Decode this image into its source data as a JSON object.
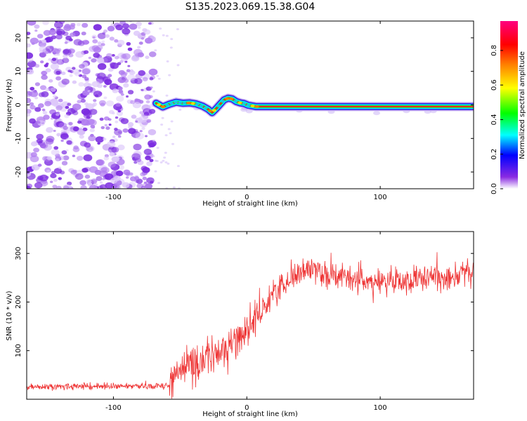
{
  "title": "S135.2023.069.15.38.G04",
  "chart_data": [
    {
      "type": "heatmap",
      "xlabel": "Height of straight line (km)",
      "ylabel": "Frequency (Hz)",
      "xlim": [
        -165,
        170
      ],
      "ylim": [
        -25,
        25
      ],
      "x_ticks": [
        -100,
        0,
        100
      ],
      "y_ticks": [
        -20,
        -10,
        0,
        10,
        20
      ],
      "noise_region_x": [
        -165,
        -70
      ],
      "ridge": {
        "x": [
          -68,
          -63,
          -58,
          -53,
          -48,
          -43,
          -38,
          -33,
          -29,
          -26,
          -23,
          -20,
          -17,
          -14,
          -11,
          -8,
          -5,
          -2,
          1,
          4,
          7,
          170
        ],
        "y": [
          0.5,
          -0.6,
          0.2,
          0.8,
          0.5,
          0.6,
          0.3,
          -0.4,
          -1.3,
          -2.3,
          -1.1,
          0.2,
          1.5,
          2.0,
          1.8,
          1.0,
          0.6,
          0.4,
          -0.1,
          -0.3,
          -0.5,
          -0.5
        ]
      },
      "colorbar": {
        "label": "Normalized spectral amplitude",
        "ticks": [
          "0.0",
          "0.2",
          "0.4",
          "0.6",
          "0.8"
        ],
        "range": [
          0,
          0.97
        ]
      }
    },
    {
      "type": "line",
      "xlabel": "Height of straight line (km)",
      "ylabel": "SNR (10 * v/v)",
      "xlim": [
        -165,
        170
      ],
      "ylim": [
        0,
        345
      ],
      "x_ticks": [
        -100,
        0,
        100
      ],
      "y_ticks": [
        100,
        200,
        300
      ],
      "color": "#ee3333",
      "trend": {
        "x": [
          -165,
          -58,
          -50,
          -35,
          -20,
          -5,
          10,
          20,
          35,
          50,
          70,
          100,
          130,
          150,
          170
        ],
        "y": [
          25,
          28,
          60,
          80,
          95,
          130,
          175,
          220,
          255,
          270,
          250,
          240,
          245,
          255,
          260
        ]
      }
    }
  ]
}
